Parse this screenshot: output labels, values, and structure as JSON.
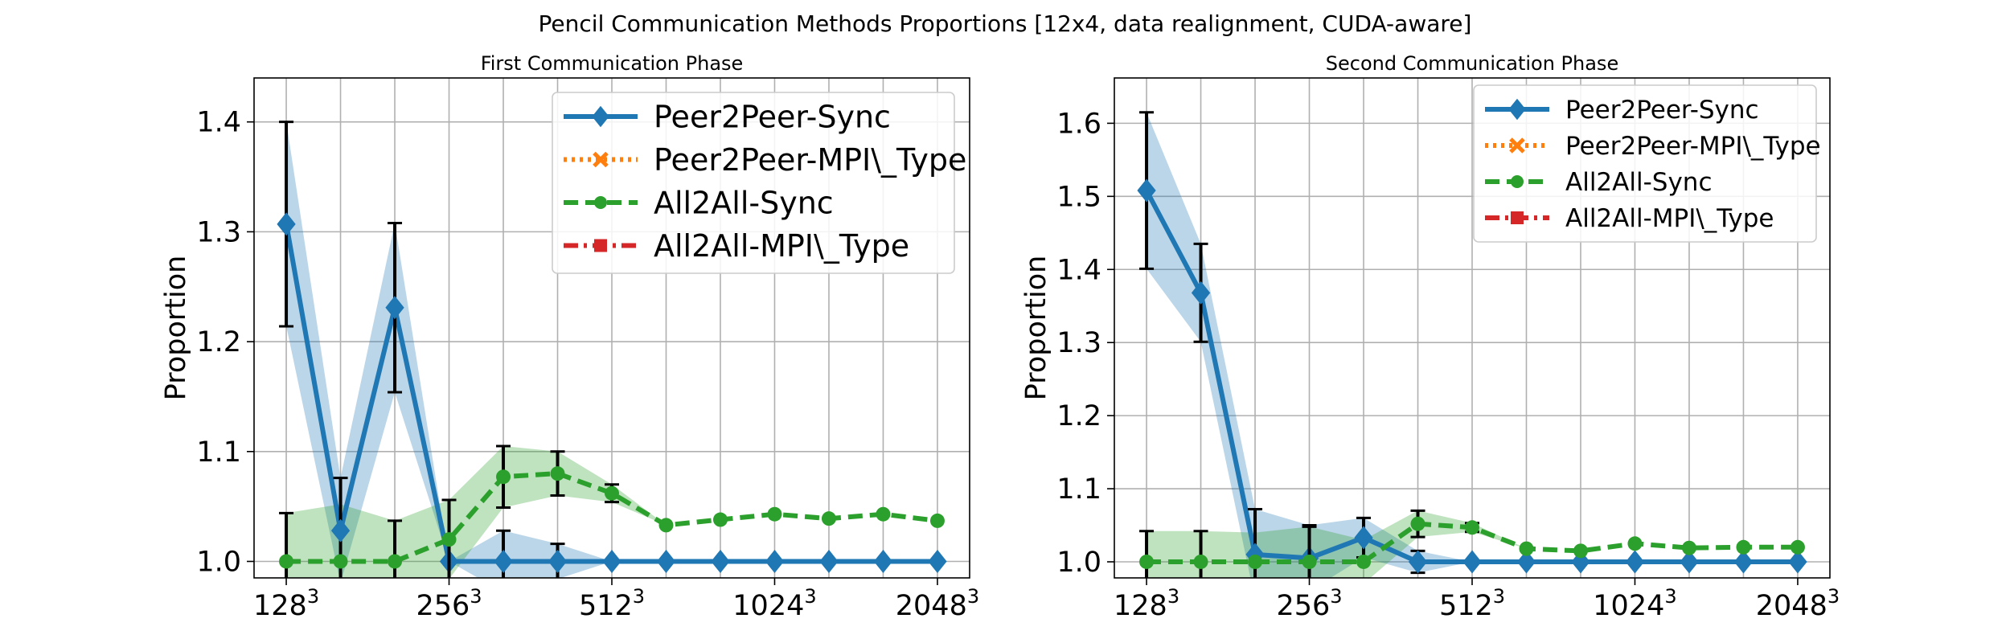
{
  "figure": {
    "suptitle": "Pencil Communication Methods Proportions [12x4, data realignment, CUDA-aware]"
  },
  "colors": {
    "p2p_sync": "#1f77b4",
    "p2p_mpi": "#ff7f0e",
    "a2a_sync": "#2ca02c",
    "a2a_mpi": "#d62728"
  },
  "chart_data": [
    {
      "type": "line",
      "title": "First Communication Phase",
      "xlabel": "",
      "ylabel": "Proportion",
      "grid": true,
      "legend": "top-right",
      "x_tick_labels": [
        {
          "base": "128",
          "exp": "3"
        },
        {
          "base": "256",
          "exp": "3"
        },
        {
          "base": "512",
          "exp": "3"
        },
        {
          "base": "1024",
          "exp": "3"
        },
        {
          "base": "2048",
          "exp": "3"
        }
      ],
      "ylim": [
        0.985,
        1.44
      ],
      "yticks": [
        1.0,
        1.1,
        1.2,
        1.3,
        1.4
      ],
      "y_tick_labels": [
        "1.0",
        "1.1",
        "1.2",
        "1.3",
        "1.4"
      ],
      "series": [
        {
          "name": "Peer2Peer-Sync",
          "color": "#1f77b4",
          "style": "solid",
          "marker": "diamond",
          "values": [
            1.307,
            1.028,
            1.231,
            1.0,
            1.0,
            1.0,
            1.0,
            1.0,
            1.0,
            1.0,
            1.0,
            1.0,
            1.0
          ],
          "err": [
            0.093,
            0.048,
            0.077,
            0.0,
            0.028,
            0.016,
            0,
            0,
            0,
            0,
            0,
            0,
            0
          ],
          "band": [
            0.093,
            0.048,
            0.077,
            0.0,
            0.028,
            0.016,
            0,
            0,
            0,
            0,
            0,
            0,
            0
          ]
        },
        {
          "name": "Peer2Peer-MPI\\_Type",
          "color": "#ff7f0e",
          "style": "dotted",
          "marker": "x",
          "values": [],
          "err": [],
          "band": []
        },
        {
          "name": "All2All-Sync",
          "color": "#2ca02c",
          "style": "dashed",
          "marker": "circle",
          "values": [
            1.0,
            1.0,
            1.0,
            1.02,
            1.077,
            1.08,
            1.062,
            1.033,
            1.038,
            1.043,
            1.039,
            1.043,
            1.037
          ],
          "err": [
            0.044,
            0.0,
            0.037,
            0.036,
            0.028,
            0.02,
            0.008,
            0,
            0,
            0,
            0,
            0,
            0
          ],
          "band": [
            0.044,
            0.052,
            0.037,
            0.036,
            0.028,
            0.02,
            0.008,
            0,
            0,
            0,
            0,
            0,
            0
          ]
        },
        {
          "name": "All2All-MPI\\_Type",
          "color": "#d62728",
          "style": "dashdot",
          "marker": "square",
          "values": [],
          "err": [],
          "band": []
        }
      ]
    },
    {
      "type": "line",
      "title": "Second Communication Phase",
      "xlabel": "",
      "ylabel": "Proportion",
      "grid": true,
      "legend": "top-right",
      "x_tick_labels": [
        {
          "base": "128",
          "exp": "3"
        },
        {
          "base": "256",
          "exp": "3"
        },
        {
          "base": "512",
          "exp": "3"
        },
        {
          "base": "1024",
          "exp": "3"
        },
        {
          "base": "2048",
          "exp": "3"
        }
      ],
      "ylim": [
        0.978,
        1.662
      ],
      "yticks": [
        1.0,
        1.1,
        1.2,
        1.3,
        1.4,
        1.5,
        1.6
      ],
      "y_tick_labels": [
        "1.0",
        "1.1",
        "1.2",
        "1.3",
        "1.4",
        "1.5",
        "1.6"
      ],
      "series": [
        {
          "name": "Peer2Peer-Sync",
          "color": "#1f77b4",
          "style": "solid",
          "marker": "diamond",
          "values": [
            1.508,
            1.368,
            1.01,
            1.005,
            1.033,
            1.0,
            1.0,
            1.0,
            1.0,
            1.0,
            1.0,
            1.0,
            1.0
          ],
          "err": [
            0.107,
            0.067,
            0.062,
            0.045,
            0.027,
            0.015,
            0,
            0,
            0,
            0,
            0,
            0,
            0
          ],
          "band": [
            0.107,
            0.067,
            0.062,
            0.045,
            0.027,
            0.015,
            0,
            0,
            0,
            0,
            0,
            0,
            0
          ]
        },
        {
          "name": "Peer2Peer-MPI\\_Type",
          "color": "#ff7f0e",
          "style": "dotted",
          "marker": "x",
          "values": [],
          "err": [],
          "band": []
        },
        {
          "name": "All2All-Sync",
          "color": "#2ca02c",
          "style": "dashed",
          "marker": "circle",
          "values": [
            1.0,
            1.0,
            1.0,
            1.0,
            1.0,
            1.052,
            1.047,
            1.018,
            1.015,
            1.025,
            1.019,
            1.02,
            1.02
          ],
          "err": [
            0.042,
            0.042,
            0.0,
            0.048,
            0.0,
            0.018,
            0.006,
            0,
            0,
            0,
            0,
            0,
            0
          ],
          "band": [
            0.042,
            0.042,
            0.04,
            0.048,
            0.03,
            0.018,
            0.006,
            0,
            0,
            0,
            0,
            0,
            0
          ]
        },
        {
          "name": "All2All-MPI\\_Type",
          "color": "#d62728",
          "style": "dashdot",
          "marker": "square",
          "values": [],
          "err": [],
          "band": []
        }
      ]
    }
  ]
}
